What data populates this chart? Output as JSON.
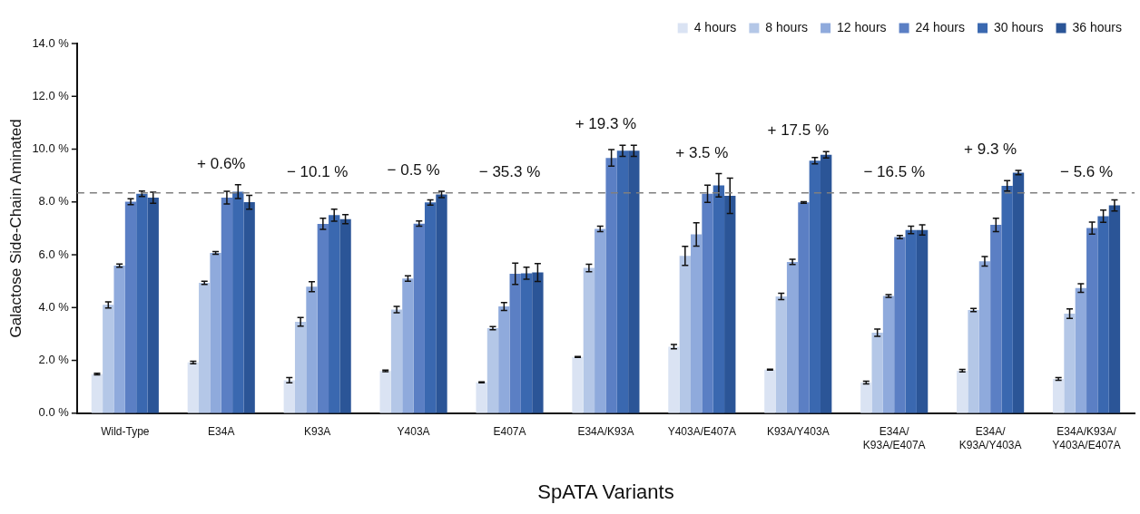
{
  "chart_data": {
    "type": "bar",
    "xlabel": "SpATA Variants",
    "ylabel": "Galactose Side-Chain Aminated",
    "categories": [
      "Wild-Type",
      "E34A",
      "K93A",
      "Y403A",
      "E407A",
      "E34A/K93A",
      "Y403A/E407A",
      "K93A/Y403A",
      "E34A/\nK93A/E407A",
      "E34A/\nK93A/Y403A",
      "E34A/K93A/\nY403A/E407A"
    ],
    "series": [
      {
        "name": "4 hours",
        "color": "#dae3f3",
        "values": [
          1.48,
          1.92,
          1.25,
          1.6,
          1.17,
          2.13,
          2.52,
          1.65,
          1.16,
          1.61,
          1.3
        ],
        "errors": [
          0.03,
          0.05,
          0.1,
          0.03,
          0.02,
          0.02,
          0.08,
          0.02,
          0.05,
          0.05,
          0.05
        ]
      },
      {
        "name": "8 hours",
        "color": "#b4c7e7",
        "values": [
          4.1,
          4.94,
          3.46,
          3.92,
          3.22,
          5.5,
          5.96,
          4.42,
          3.05,
          3.91,
          3.77
        ],
        "errors": [
          0.12,
          0.06,
          0.16,
          0.12,
          0.06,
          0.14,
          0.36,
          0.12,
          0.14,
          0.06,
          0.18
        ]
      },
      {
        "name": "12 hours",
        "color": "#8faadc",
        "values": [
          5.59,
          6.07,
          4.79,
          5.1,
          4.04,
          6.98,
          6.77,
          5.73,
          4.44,
          5.75,
          4.74
        ],
        "errors": [
          0.06,
          0.05,
          0.19,
          0.1,
          0.15,
          0.1,
          0.44,
          0.1,
          0.05,
          0.18,
          0.16
        ]
      },
      {
        "name": "24 hours",
        "color": "#5b7fc4",
        "values": [
          8.01,
          8.16,
          7.17,
          7.18,
          5.28,
          9.67,
          8.31,
          7.98,
          6.67,
          7.13,
          7.01
        ],
        "errors": [
          0.11,
          0.24,
          0.21,
          0.1,
          0.4,
          0.31,
          0.33,
          0.03,
          0.06,
          0.25,
          0.23
        ]
      },
      {
        "name": "30 hours",
        "color": "#3a68b0",
        "values": [
          8.31,
          8.39,
          7.5,
          7.98,
          5.3,
          9.94,
          8.63,
          9.56,
          6.94,
          8.61,
          7.46
        ],
        "errors": [
          0.1,
          0.26,
          0.23,
          0.1,
          0.23,
          0.21,
          0.44,
          0.12,
          0.14,
          0.2,
          0.23
        ]
      },
      {
        "name": "36 hours",
        "color": "#2b5597",
        "values": [
          8.16,
          7.99,
          7.35,
          8.28,
          5.33,
          9.94,
          8.23,
          9.79,
          6.94,
          9.11,
          7.87
        ],
        "errors": [
          0.21,
          0.26,
          0.17,
          0.12,
          0.34,
          0.21,
          0.67,
          0.12,
          0.19,
          0.08,
          0.21
        ]
      }
    ],
    "ylim": [
      0,
      14
    ],
    "yticks": [
      {
        "value": 0,
        "label": "0.0 %"
      },
      {
        "value": 2,
        "label": "2.0 %"
      },
      {
        "value": 4,
        "label": "4.0 %"
      },
      {
        "value": 6,
        "label": "6.0 %"
      },
      {
        "value": 8,
        "label": "8.0 %"
      },
      {
        "value": 10,
        "label": "10.0 %"
      },
      {
        "value": 12,
        "label": "12.0 %"
      },
      {
        "value": 14,
        "label": "14.0 %"
      }
    ],
    "ref_lines": [
      {
        "axis": "y",
        "value": 8.34,
        "color": "#7f7f7f",
        "line_style": "dashed"
      }
    ],
    "annotations": [
      "+ 0.6%",
      "− 10.1 %",
      "− 0.5 %",
      "− 35.3 %",
      "+ 19.3 %",
      "+ 3.5 %",
      "+ 17.5 %",
      "− 16.5 %",
      "+ 9.3 %",
      "− 5.6 %"
    ],
    "grid": false,
    "legend": "top right"
  }
}
